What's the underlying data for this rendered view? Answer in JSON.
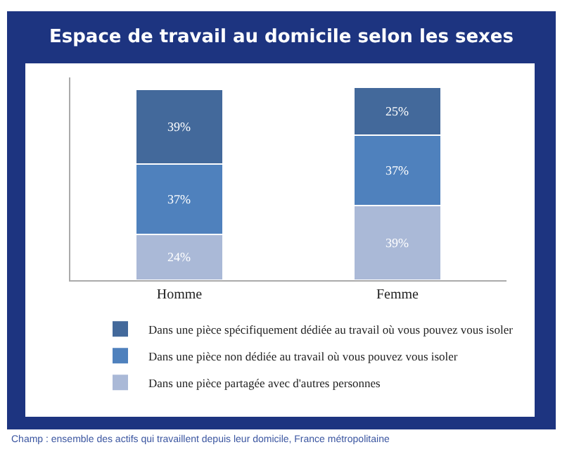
{
  "chart_data": {
    "type": "bar",
    "title": "Espace de travail au domicile selon les sexes",
    "categories": [
      "Homme",
      "Femme"
    ],
    "stacked": true,
    "series": [
      {
        "name": "Dans une pièce partagée avec d'autres personnes",
        "color": "#aab9d7",
        "values": [
          24,
          39
        ],
        "value_labels": [
          "24%",
          "39%"
        ]
      },
      {
        "name": "Dans une pièce non dédiée au travail où vous pouvez vous isoler",
        "color": "#4f81bd",
        "values": [
          37,
          37
        ],
        "value_labels": [
          "37%",
          "37%"
        ]
      },
      {
        "name": "Dans une pièce spécifiquement dédiée au travail où vous pouvez vous isoler",
        "color": "#43699b",
        "values": [
          39,
          25
        ],
        "value_labels": [
          "39%",
          "25%"
        ]
      }
    ],
    "legend": "bottom",
    "tick_labels": "x",
    "annotations": [
      "Champ : ensemble des actifs qui travaillent depuis leur domicile, France métropolitaine"
    ]
  }
}
